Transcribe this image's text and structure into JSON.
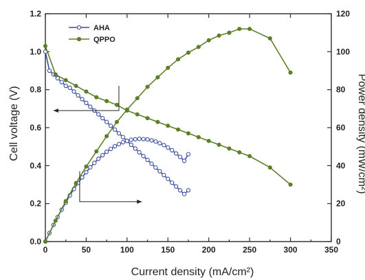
{
  "chart_data": {
    "type": "line",
    "title": "",
    "xlabel": "Current density (mA/cm²)",
    "ylabel_left": "Cell voltage (V)",
    "ylabel_right": "Power density (mW/cm²)",
    "xlim": [
      0,
      350
    ],
    "ylim_left": [
      0.0,
      1.2
    ],
    "ylim_right": [
      0,
      120
    ],
    "x_ticks": [
      "0",
      "50",
      "100",
      "150",
      "200",
      "250",
      "300",
      "350"
    ],
    "y_left_ticks": [
      "0.0",
      "0.2",
      "0.4",
      "0.6",
      "0.8",
      "1.0",
      "1.2"
    ],
    "y_right_ticks": [
      "0",
      "20",
      "40",
      "60",
      "80",
      "100",
      "120"
    ],
    "grid": false,
    "legend_position": "top-left",
    "series": [
      {
        "name": "AHA",
        "color": "#3a4f9c",
        "marker": "open-circle",
        "axis": "left",
        "x": [
          0,
          5,
          10,
          15,
          20,
          25,
          30,
          35,
          40,
          45,
          50,
          55,
          60,
          65,
          70,
          75,
          80,
          85,
          90,
          95,
          100,
          105,
          110,
          115,
          120,
          125,
          130,
          135,
          140,
          145,
          150,
          155,
          160,
          165,
          170,
          175
        ],
        "values": [
          1.0,
          0.9,
          0.88,
          0.86,
          0.84,
          0.82,
          0.81,
          0.79,
          0.77,
          0.75,
          0.73,
          0.71,
          0.69,
          0.67,
          0.65,
          0.63,
          0.61,
          0.59,
          0.57,
          0.55,
          0.53,
          0.51,
          0.49,
          0.47,
          0.45,
          0.43,
          0.41,
          0.39,
          0.37,
          0.35,
          0.33,
          0.31,
          0.29,
          0.27,
          0.25,
          0.27
        ]
      },
      {
        "name": "AHA",
        "color": "#3a4f9c",
        "marker": "open-circle",
        "axis": "right",
        "x": [
          0,
          5,
          10,
          15,
          20,
          25,
          30,
          35,
          40,
          45,
          50,
          55,
          60,
          65,
          70,
          75,
          80,
          85,
          90,
          95,
          100,
          105,
          110,
          115,
          120,
          125,
          130,
          135,
          140,
          145,
          150,
          155,
          160,
          165,
          170,
          175
        ],
        "values": [
          0,
          4.5,
          8.8,
          12.9,
          16.8,
          20.5,
          24.3,
          27.7,
          30.8,
          33.8,
          36.5,
          39.1,
          41.4,
          43.6,
          45.5,
          47.3,
          48.8,
          50.2,
          51.3,
          52.3,
          53.0,
          53.6,
          53.9,
          54.1,
          54.0,
          53.8,
          53.3,
          52.7,
          51.8,
          50.8,
          49.5,
          48.1,
          46.4,
          44.6,
          42.5,
          46.0
        ]
      },
      {
        "name": "QPPO",
        "color": "#5d7f2a",
        "marker": "filled-circle",
        "axis": "left",
        "x": [
          0,
          12.5,
          25,
          37.5,
          50,
          62.5,
          75,
          87.5,
          100,
          112.5,
          125,
          137.5,
          150,
          162.5,
          175,
          187.5,
          200,
          212.5,
          225,
          237.5,
          250,
          275,
          300
        ],
        "values": [
          1.03,
          0.88,
          0.85,
          0.82,
          0.79,
          0.76,
          0.74,
          0.72,
          0.69,
          0.67,
          0.65,
          0.63,
          0.61,
          0.59,
          0.57,
          0.55,
          0.53,
          0.51,
          0.49,
          0.47,
          0.45,
          0.39,
          0.3
        ]
      },
      {
        "name": "QPPO",
        "color": "#5d7f2a",
        "marker": "filled-circle",
        "axis": "right",
        "x": [
          0,
          12.5,
          25,
          37.5,
          50,
          62.5,
          75,
          87.5,
          100,
          112.5,
          125,
          137.5,
          150,
          162.5,
          175,
          187.5,
          200,
          212.5,
          225,
          237.5,
          250,
          275,
          300
        ],
        "values": [
          0,
          11,
          21.3,
          30.8,
          39.5,
          47.5,
          55.5,
          63,
          69.5,
          75.5,
          81.5,
          86.5,
          91.5,
          96,
          99.5,
          102.5,
          106,
          108.5,
          110,
          112,
          112,
          107,
          89
        ]
      }
    ],
    "annotations": [
      {
        "type": "arrow",
        "direction": "left",
        "target_axis": "left"
      },
      {
        "type": "arrow",
        "direction": "right",
        "target_axis": "right"
      }
    ]
  }
}
